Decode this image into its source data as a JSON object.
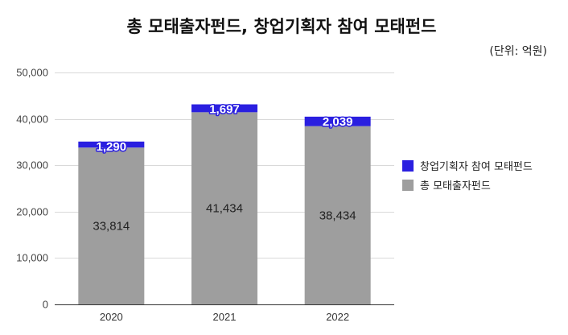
{
  "chart_data": {
    "type": "bar",
    "stacked": true,
    "title": "총 모태출자펀드, 창업기획자 참여 모태펀드",
    "unit_note": "(단위: 억원)",
    "categories": [
      "2020",
      "2021",
      "2022"
    ],
    "series": [
      {
        "name": "총 모태출자펀드",
        "values": [
          33814,
          41434,
          38434
        ],
        "labels": [
          "33,814",
          "41,434",
          "38,434"
        ],
        "color": "#9e9e9e"
      },
      {
        "name": "창업기획자 참여 모태펀드",
        "values": [
          1290,
          1697,
          2039
        ],
        "labels": [
          "1,290",
          "1,697",
          "2,039"
        ],
        "color": "#2a1fe0"
      }
    ],
    "ylim": [
      0,
      50000
    ],
    "yticks": [
      0,
      10000,
      20000,
      30000,
      40000,
      50000
    ],
    "ytick_labels": [
      "0",
      "10,000",
      "20,000",
      "30,000",
      "40,000",
      "50,000"
    ],
    "grid": true,
    "legend_position": "right"
  }
}
